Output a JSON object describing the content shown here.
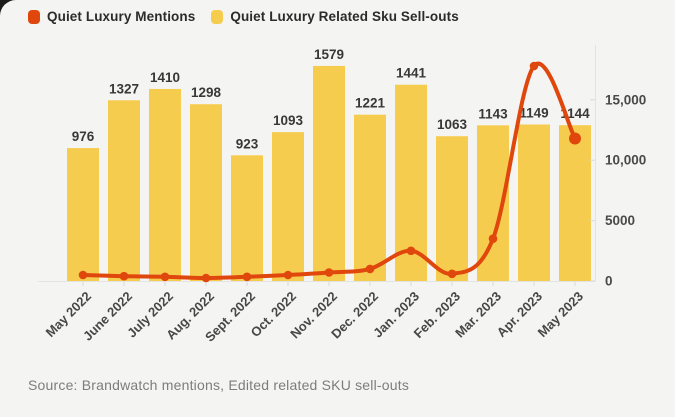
{
  "page": {
    "outer_background": "#1c1c1c",
    "card_background": "#f4f4f2"
  },
  "legend": [
    {
      "label": "Quiet Luxury Mentions",
      "color": "#e0470d",
      "marker": "rounded-square"
    },
    {
      "label": "Quiet Luxury Related Sku Sell-outs",
      "color": "#f6cc4f",
      "marker": "rounded-square"
    }
  ],
  "source_note": "Source: Brandwatch mentions, Edited related SKU sell-outs",
  "chart_data": {
    "type": "bar+line",
    "categories": [
      "May 2022",
      "June 2022",
      "July 2022",
      "Aug. 2022",
      "Sept. 2022",
      "Oct. 2022",
      "Nov. 2022",
      "Dec. 2022",
      "Jan. 2023",
      "Feb. 2023",
      "Mar. 2023",
      "Apr. 2023",
      "May 2023"
    ],
    "series": [
      {
        "name": "Quiet Luxury Related Sku Sell-outs",
        "type": "bar",
        "color": "#f6cc4f",
        "values": [
          976,
          1327,
          1410,
          1298,
          923,
          1093,
          1579,
          1221,
          1441,
          1063,
          1143,
          1149,
          1144
        ],
        "data_labels_shown": true
      },
      {
        "name": "Quiet Luxury Mentions",
        "type": "line",
        "color": "#e0470d",
        "axis": "right",
        "values_estimated": true,
        "values": [
          500,
          400,
          350,
          250,
          350,
          500,
          700,
          1000,
          2500,
          600,
          3500,
          17800,
          11800
        ]
      }
    ],
    "right_axis": {
      "ticks": [
        0,
        5000,
        10000,
        15000
      ],
      "tick_labels": [
        "0",
        "5000",
        "10,000",
        "15,000"
      ],
      "range": [
        0,
        19500
      ]
    },
    "bar_axis": {
      "range": [
        0,
        1780
      ],
      "hidden": true
    },
    "legend_position": "top-left",
    "grid": false,
    "title": "",
    "xlabel": "",
    "ylabel": ""
  },
  "colors": {
    "axis_line": "#e3e3e0",
    "tick": "#d9d9d6",
    "bar_value_label": "#383838",
    "axis_label": "#4a4a4a",
    "month_label": "#474747"
  }
}
